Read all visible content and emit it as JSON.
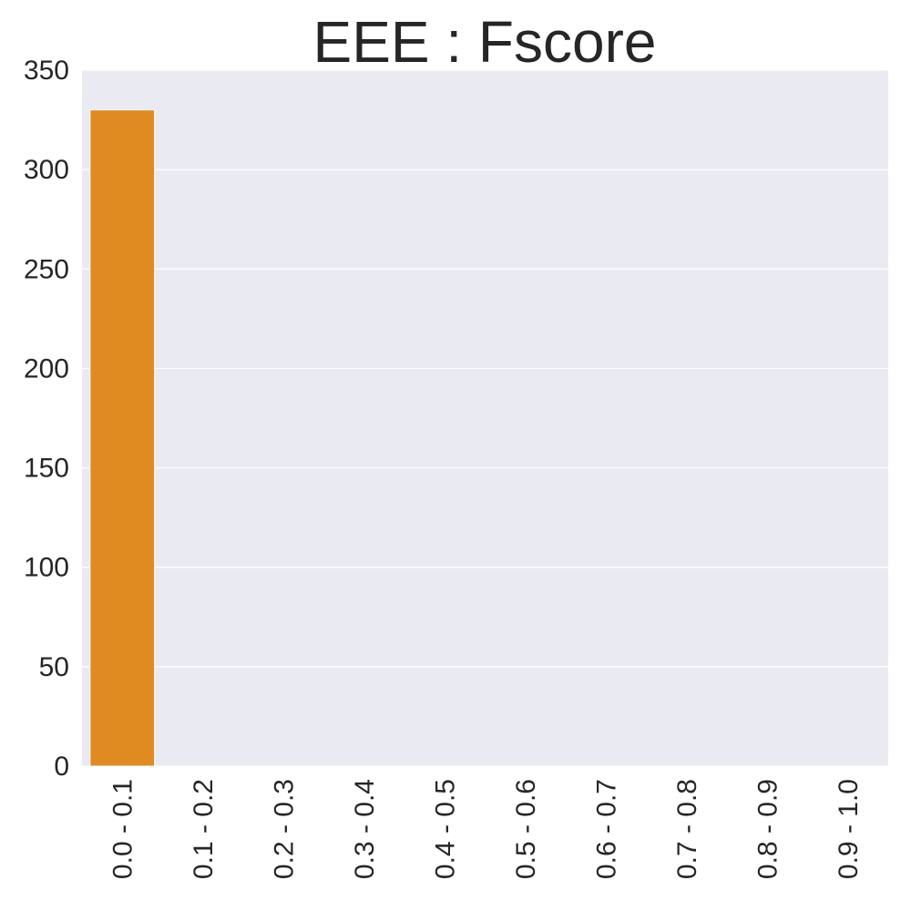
{
  "chart_data": {
    "type": "bar",
    "title": "EEE : Fscore",
    "xlabel": "",
    "ylabel": "",
    "categories": [
      "0.0 - 0.1",
      "0.1 - 0.2",
      "0.2 - 0.3",
      "0.3 - 0.4",
      "0.4 - 0.5",
      "0.5 - 0.6",
      "0.6 - 0.7",
      "0.7 - 0.8",
      "0.8 - 0.9",
      "0.9 - 1.0"
    ],
    "values": [
      330,
      0,
      0,
      0,
      0,
      0,
      0,
      0,
      0,
      0
    ],
    "ylim": [
      0,
      350
    ],
    "yticks": [
      0,
      50,
      100,
      150,
      200,
      250,
      300,
      350
    ],
    "grid": true,
    "legend": "none",
    "colors": {
      "background": "#eaeaf2",
      "grid": "#ffffff",
      "bar": "#e08a22",
      "text": "#262626"
    }
  }
}
